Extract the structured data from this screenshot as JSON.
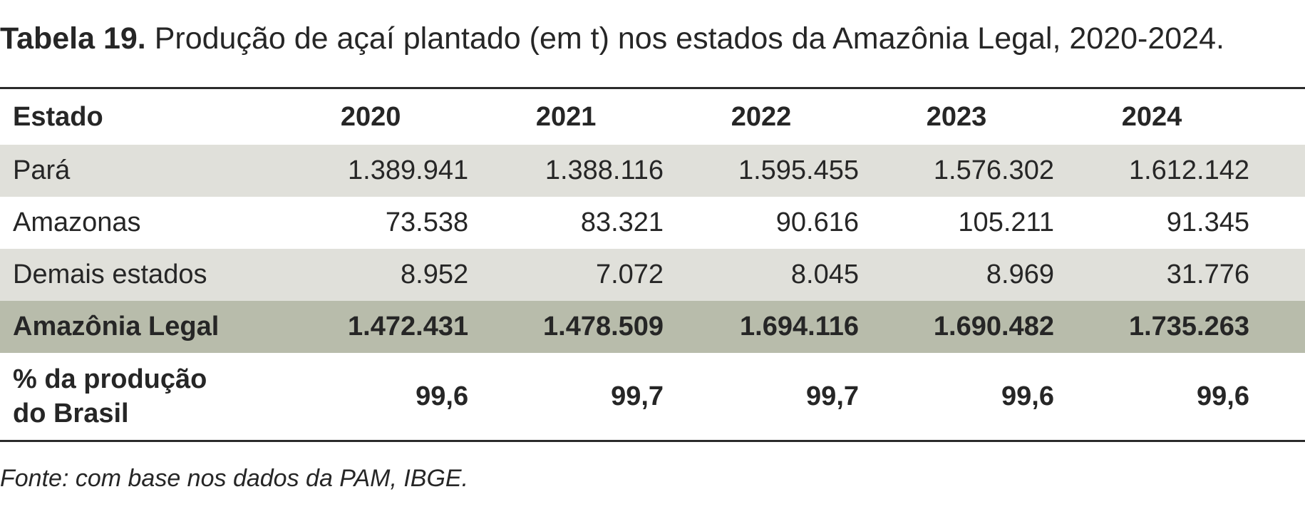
{
  "caption": {
    "label": "Tabela 19.",
    "text": "Produção de açaí plantado (em t) nos estados da Amazônia Legal, 2020-2024."
  },
  "table": {
    "header": {
      "state": "Estado",
      "years": [
        "2020",
        "2021",
        "2022",
        "2023",
        "2024"
      ]
    },
    "rows": [
      {
        "state": "Pará",
        "values": [
          "1.389.941",
          "1.388.116",
          "1.595.455",
          "1.576.302",
          "1.612.142"
        ]
      },
      {
        "state": "Amazonas",
        "values": [
          "73.538",
          "83.321",
          "90.616",
          "105.211",
          "91.345"
        ]
      },
      {
        "state": "Demais estados",
        "values": [
          "8.952",
          "7.072",
          "8.045",
          "8.969",
          "31.776"
        ]
      },
      {
        "state": "Amazônia Legal",
        "values": [
          "1.472.431",
          "1.478.509",
          "1.694.116",
          "1.690.482",
          "1.735.263"
        ]
      },
      {
        "state_line1": "% da produção",
        "state_line2": "do Brasil",
        "values": [
          "99,6",
          "99,7",
          "99,7",
          "99,6",
          "99,6"
        ]
      }
    ]
  },
  "source": "Fonte: com base nos dados da PAM, IBGE.",
  "colors": {
    "alt_row": "#e0e0da",
    "total_row": "#b8bcab",
    "rule": "#2b2b2b"
  }
}
